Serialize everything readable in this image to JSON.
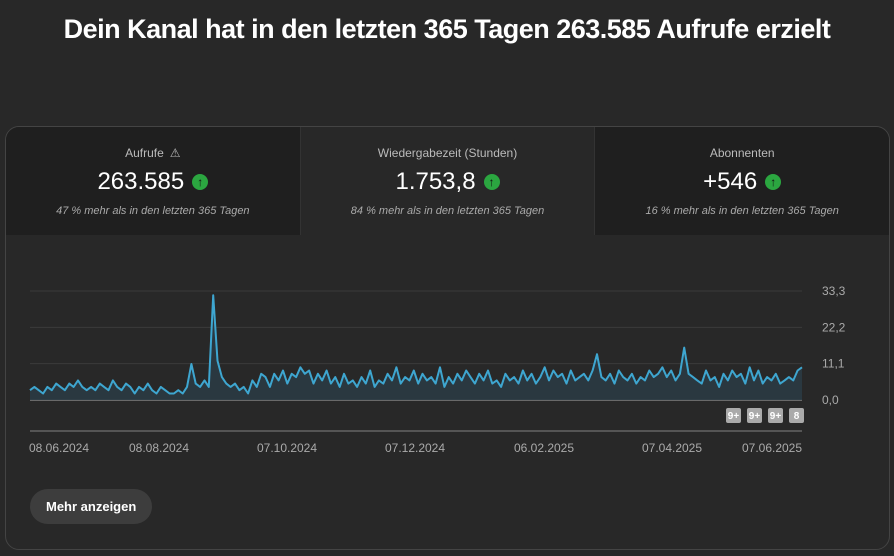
{
  "headline": "Dein Kanal hat in den letzten 365 Tagen 263.585 Aufrufe erzielt",
  "metrics": [
    {
      "label": "Aufrufe",
      "value": "263.585",
      "trend": "up",
      "sub": "47 % mehr als in den letzten 365 Tagen",
      "warning_icon": "warning-icon"
    },
    {
      "label": "Wiedergabezeit (Stunden)",
      "value": "1.753,8",
      "trend": "up",
      "sub": "84 % mehr als in den letzten 365 Tagen"
    },
    {
      "label": "Abonnenten",
      "value": "+546",
      "trend": "up",
      "sub": "16 % mehr als in den letzten 365 Tagen"
    }
  ],
  "more_button": "Mehr anzeigen",
  "chart_data": {
    "type": "area",
    "series": [
      {
        "name": "Aufrufe",
        "color": "#3ea6d0",
        "values": [
          3,
          4,
          3,
          2,
          4,
          3,
          5,
          4,
          3,
          5,
          4,
          6,
          4,
          3,
          4,
          3,
          5,
          4,
          3,
          6,
          4,
          3,
          5,
          4,
          2,
          4,
          3,
          5,
          3,
          2,
          4,
          3,
          2,
          2,
          3,
          2,
          4,
          11,
          5,
          4,
          6,
          4,
          32,
          12,
          7,
          5,
          4,
          5,
          3,
          4,
          2,
          6,
          4,
          8,
          7,
          4,
          8,
          6,
          9,
          5,
          8,
          7,
          10,
          8,
          9,
          5,
          8,
          6,
          9,
          5,
          7,
          4,
          8,
          5,
          6,
          4,
          7,
          5,
          9,
          4,
          6,
          5,
          8,
          6,
          10,
          5,
          7,
          6,
          9,
          5,
          8,
          6,
          7,
          5,
          10,
          4,
          7,
          5,
          8,
          6,
          9,
          7,
          5,
          8,
          6,
          9,
          5,
          6,
          4,
          8,
          6,
          7,
          5,
          9,
          6,
          8,
          5,
          7,
          10,
          6,
          9,
          7,
          8,
          5,
          9,
          6,
          7,
          8,
          6,
          9,
          14,
          7,
          6,
          8,
          5,
          9,
          7,
          6,
          8,
          5,
          7,
          6,
          9,
          7,
          8,
          10,
          7,
          9,
          6,
          8,
          16,
          8,
          7,
          6,
          5,
          9,
          6,
          7,
          4,
          8,
          6,
          9,
          7,
          8,
          5,
          10,
          6,
          9,
          5,
          7,
          6,
          8,
          5,
          6,
          7,
          6,
          9,
          10
        ]
      }
    ],
    "x_tick_labels": [
      "08.06.2024",
      "08.08.2024",
      "07.10.2024",
      "07.12.2024",
      "06.02.2025",
      "07.04.2025",
      "07.06.2025"
    ],
    "y_tick_labels": [
      "0,0",
      "11,1",
      "22,2",
      "33,3"
    ],
    "ylim": [
      0,
      33.3
    ],
    "markers": [
      "9+",
      "9+",
      "9+",
      "8"
    ],
    "grid": true
  }
}
